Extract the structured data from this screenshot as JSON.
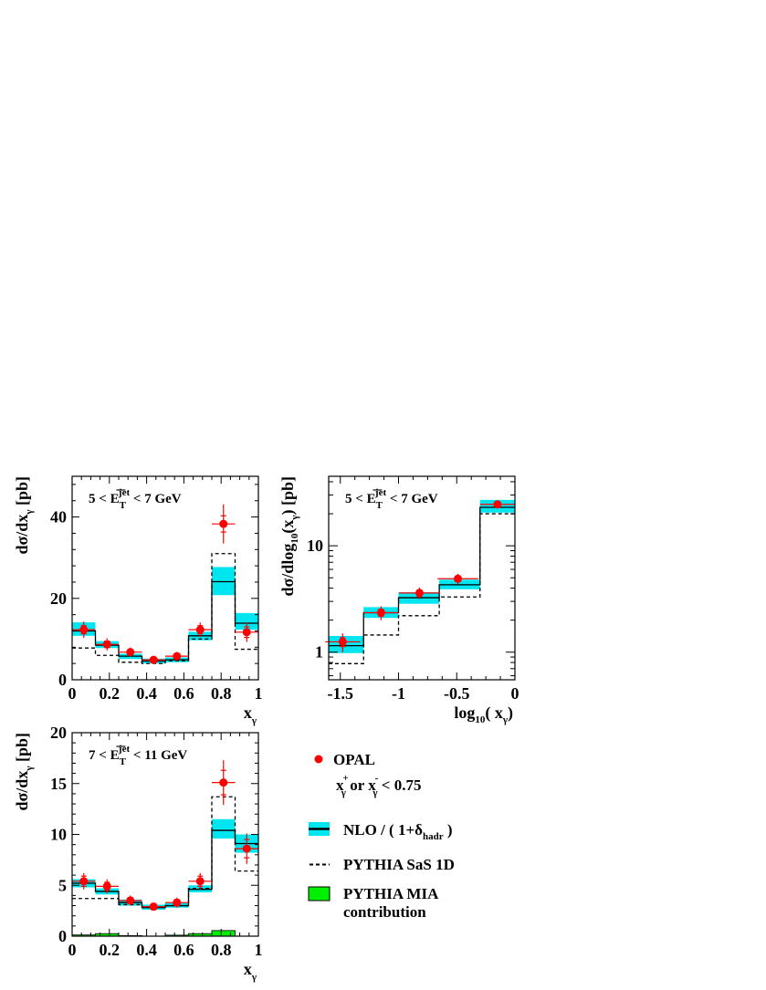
{
  "chart_data": [
    {
      "type": "bar",
      "panel": "top-left",
      "label": {
        "pre": "5 <",
        "var": "E",
        "sub": "T",
        "sup": "jet",
        "post": "< 7 GeV"
      },
      "xlabel": {
        "main": "x",
        "sub": "γ"
      },
      "ylabel": "dσ/dx_γ [pb]",
      "xlim": [
        0,
        1
      ],
      "ylim": [
        0,
        50
      ],
      "x_ticks": [
        "0",
        "0.2",
        "0.4",
        "0.6",
        "0.8",
        "1"
      ],
      "x_tick_values": [
        0,
        0.2,
        0.4,
        0.6,
        0.8,
        1
      ],
      "y_ticks": [
        "0",
        "20",
        "40"
      ],
      "y_tick_values": [
        0,
        20,
        40
      ],
      "bin_edges": [
        0,
        0.125,
        0.25,
        0.375,
        0.5,
        0.625,
        0.75,
        0.875,
        1.0
      ],
      "series": [
        {
          "name": "OPAL",
          "type": "points",
          "x": [
            0.0625,
            0.1875,
            0.3125,
            0.4375,
            0.5625,
            0.6875,
            0.8125,
            0.9375
          ],
          "values": [
            12.3,
            8.7,
            6.8,
            4.9,
            5.8,
            12.3,
            38.3,
            11.7
          ],
          "err_stat": [
            1.0,
            0.8,
            0.6,
            0.5,
            0.6,
            1.0,
            2.0,
            1.3
          ],
          "err_tot": [
            2.0,
            1.5,
            1.1,
            0.9,
            1.0,
            1.8,
            4.8,
            2.4
          ]
        },
        {
          "name": "NLO / ( 1+δhadr )",
          "type": "step",
          "values": [
            12.0,
            8.5,
            5.8,
            4.6,
            4.9,
            10.8,
            24.1,
            13.9
          ],
          "band_low": [
            10.8,
            7.8,
            5.1,
            4.0,
            4.3,
            9.7,
            20.8,
            12.3
          ],
          "band_high": [
            14.1,
            9.5,
            6.4,
            5.2,
            5.5,
            11.8,
            27.7,
            16.4
          ]
        },
        {
          "name": "PYTHIA SaS 1D",
          "type": "step-dashed",
          "values": [
            7.8,
            6.0,
            4.3,
            4.0,
            4.7,
            10.0,
            31.0,
            7.5
          ]
        }
      ]
    },
    {
      "type": "bar",
      "panel": "top-right",
      "label": {
        "pre": "5 <",
        "var": "E",
        "sub": "T",
        "sup": "jet",
        "post": "< 7 GeV"
      },
      "xlabel": {
        "main": "log",
        "sub": "10",
        "post": "( x",
        "sub2": "γ",
        "close": ")"
      },
      "ylabel": "dσ/dlog_10(x_γ) [pb]",
      "log_y": true,
      "xlim": [
        -1.6,
        0
      ],
      "ylim": [
        0.55,
        45
      ],
      "x_ticks": [
        "-1.5",
        "-1",
        "-0.5",
        "0"
      ],
      "x_tick_values": [
        -1.5,
        -1,
        -0.5,
        0
      ],
      "y_ticks": [
        "1",
        "10"
      ],
      "y_tick_values": [
        1,
        10
      ],
      "bin_edges": [
        -1.6,
        -1.3,
        -1.0,
        -0.65,
        -0.3,
        0.0
      ],
      "series": [
        {
          "name": "OPAL",
          "type": "points",
          "x": [
            -1.48,
            -1.15,
            -0.82,
            -0.49,
            -0.15
          ],
          "values": [
            1.25,
            2.35,
            3.6,
            4.9,
            24.5
          ],
          "err_stat": [
            0.12,
            0.18,
            0.25,
            0.3,
            1.0
          ],
          "err_tot": [
            0.25,
            0.35,
            0.45,
            0.55,
            1.8
          ]
        },
        {
          "name": "NLO / ( 1+δhadr )",
          "type": "step",
          "values": [
            1.15,
            2.35,
            3.25,
            4.3,
            23.0
          ],
          "band_low": [
            0.98,
            2.1,
            2.85,
            3.9,
            20.5
          ],
          "band_high": [
            1.42,
            2.65,
            3.65,
            4.8,
            27.0
          ]
        },
        {
          "name": "PYTHIA SaS 1D",
          "type": "step-dashed",
          "values": [
            0.78,
            1.45,
            2.2,
            3.3,
            20.0
          ]
        }
      ]
    },
    {
      "type": "bar",
      "panel": "bottom-left",
      "label": {
        "pre": "7 <",
        "var": "E",
        "sub": "T",
        "sup": "jet",
        "post": "< 11 GeV"
      },
      "xlabel": {
        "main": "x",
        "sub": "γ"
      },
      "ylabel": "dσ/dx_γ [pb]",
      "xlim": [
        0,
        1
      ],
      "ylim": [
        0,
        20
      ],
      "x_ticks": [
        "0",
        "0.2",
        "0.4",
        "0.6",
        "0.8",
        "1"
      ],
      "x_tick_values": [
        0,
        0.2,
        0.4,
        0.6,
        0.8,
        1
      ],
      "y_ticks": [
        "0",
        "5",
        "10",
        "15",
        "20"
      ],
      "y_tick_values": [
        0,
        5,
        10,
        15,
        20
      ],
      "bin_edges": [
        0,
        0.125,
        0.25,
        0.375,
        0.5,
        0.625,
        0.75,
        0.875,
        1.0
      ],
      "series": [
        {
          "name": "OPAL",
          "type": "points",
          "x": [
            0.0625,
            0.1875,
            0.3125,
            0.4375,
            0.5625,
            0.6875,
            0.8125,
            0.9375
          ],
          "values": [
            5.4,
            4.9,
            3.5,
            2.9,
            3.3,
            5.4,
            15.1,
            8.6
          ],
          "err_stat": [
            0.5,
            0.4,
            0.3,
            0.3,
            0.3,
            0.5,
            1.2,
            0.9
          ],
          "err_tot": [
            0.8,
            0.7,
            0.5,
            0.4,
            0.5,
            0.8,
            2.2,
            1.5
          ]
        },
        {
          "name": "NLO / ( 1+δhadr )",
          "type": "step",
          "values": [
            5.2,
            4.4,
            3.3,
            2.8,
            3.0,
            4.6,
            10.4,
            9.1
          ],
          "band_low": [
            4.8,
            4.1,
            3.0,
            2.6,
            2.8,
            4.3,
            9.6,
            8.2
          ],
          "band_high": [
            5.6,
            4.7,
            3.6,
            3.1,
            3.3,
            5.0,
            11.5,
            10.0
          ]
        },
        {
          "name": "PYTHIA SaS 1D",
          "type": "step-dashed",
          "values": [
            3.7,
            3.7,
            3.1,
            2.9,
            3.0,
            4.7,
            13.7,
            6.4
          ]
        },
        {
          "name": "PYTHIA MIA contribution",
          "type": "filled-bars",
          "values": [
            0.12,
            0.25,
            0.05,
            0.0,
            0.1,
            0.25,
            0.55,
            0.0
          ]
        }
      ]
    }
  ],
  "legend": {
    "opal": "OPAL",
    "cut": {
      "x1": "x",
      "sup1": "+",
      "sub1": "γ",
      "mid": " or ",
      "x2": "x",
      "sup2": "-",
      "sub2": "γ",
      "post": " < 0.75"
    },
    "nlo": {
      "pre": "NLO / ( 1+δ",
      "sub": "hadr",
      "post": " )"
    },
    "pythia": "PYTHIA SaS  1D",
    "mia_line1": "PYTHIA MIA",
    "mia_line2": "contribution"
  },
  "colors": {
    "opal": "#ff0000",
    "nlo_band": "#00e6f0",
    "nlo_line": "#000000",
    "pythia": "#000000",
    "mia": "#00f000"
  }
}
